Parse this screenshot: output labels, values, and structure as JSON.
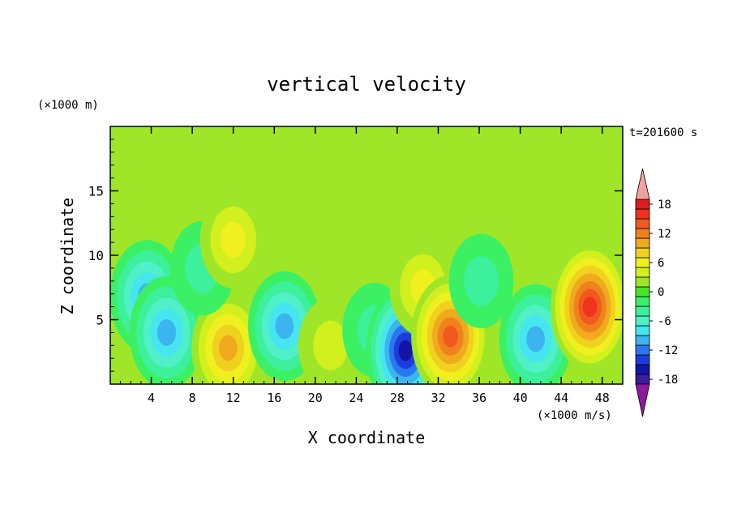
{
  "chart_data": {
    "type": "heatmap",
    "title": "vertical velocity",
    "xlabel": "X coordinate",
    "ylabel": "Z coordinate",
    "x_unit": "(×1000 m/s)",
    "y_unit": "(×1000 m)",
    "time_label": "t=201600 s",
    "xlim": [
      0,
      50
    ],
    "ylim": [
      0,
      20
    ],
    "x_ticks": [
      4,
      8,
      12,
      16,
      20,
      24,
      28,
      32,
      36,
      40,
      44,
      48
    ],
    "y_ticks": [
      5,
      10,
      15
    ],
    "colorbar": {
      "range": [
        -21,
        21
      ],
      "step": 2,
      "tick_labels": [
        18,
        12,
        6,
        0,
        -6,
        -12,
        -18
      ],
      "colors": [
        "#8c1a9c",
        "#3a1e9c",
        "#1414a6",
        "#1e3cdc",
        "#2878f0",
        "#3cb4f0",
        "#46e6f0",
        "#50f0c8",
        "#3cf09c",
        "#3cf064",
        "#46e628",
        "#a0e628",
        "#d2f01e",
        "#f0f01e",
        "#f0d21e",
        "#f0aa1e",
        "#f0821e",
        "#f05a1e",
        "#f0321e",
        "#dc1e1e",
        "#f0a0a0"
      ]
    },
    "features": [
      {
        "x": 3.6,
        "z": 6.8,
        "w": -10
      },
      {
        "x": 5.5,
        "z": 4.0,
        "w": -10
      },
      {
        "x": 11.5,
        "z": 2.8,
        "w": 9
      },
      {
        "x": 9.0,
        "z": 9.0,
        "w": -4
      },
      {
        "x": 17.0,
        "z": 4.5,
        "w": -9
      },
      {
        "x": 21.5,
        "z": 3.0,
        "w": 4
      },
      {
        "x": 25.8,
        "z": 4.2,
        "w": -4
      },
      {
        "x": 28.8,
        "z": 2.6,
        "w": -16
      },
      {
        "x": 30.5,
        "z": 7.5,
        "w": 5
      },
      {
        "x": 33.2,
        "z": 3.7,
        "w": 13
      },
      {
        "x": 36.2,
        "z": 8.0,
        "w": -4
      },
      {
        "x": 41.5,
        "z": 3.5,
        "w": -9
      },
      {
        "x": 46.8,
        "z": 6.0,
        "w": 15
      },
      {
        "x": 12.0,
        "z": 11.2,
        "w": 5
      }
    ]
  }
}
